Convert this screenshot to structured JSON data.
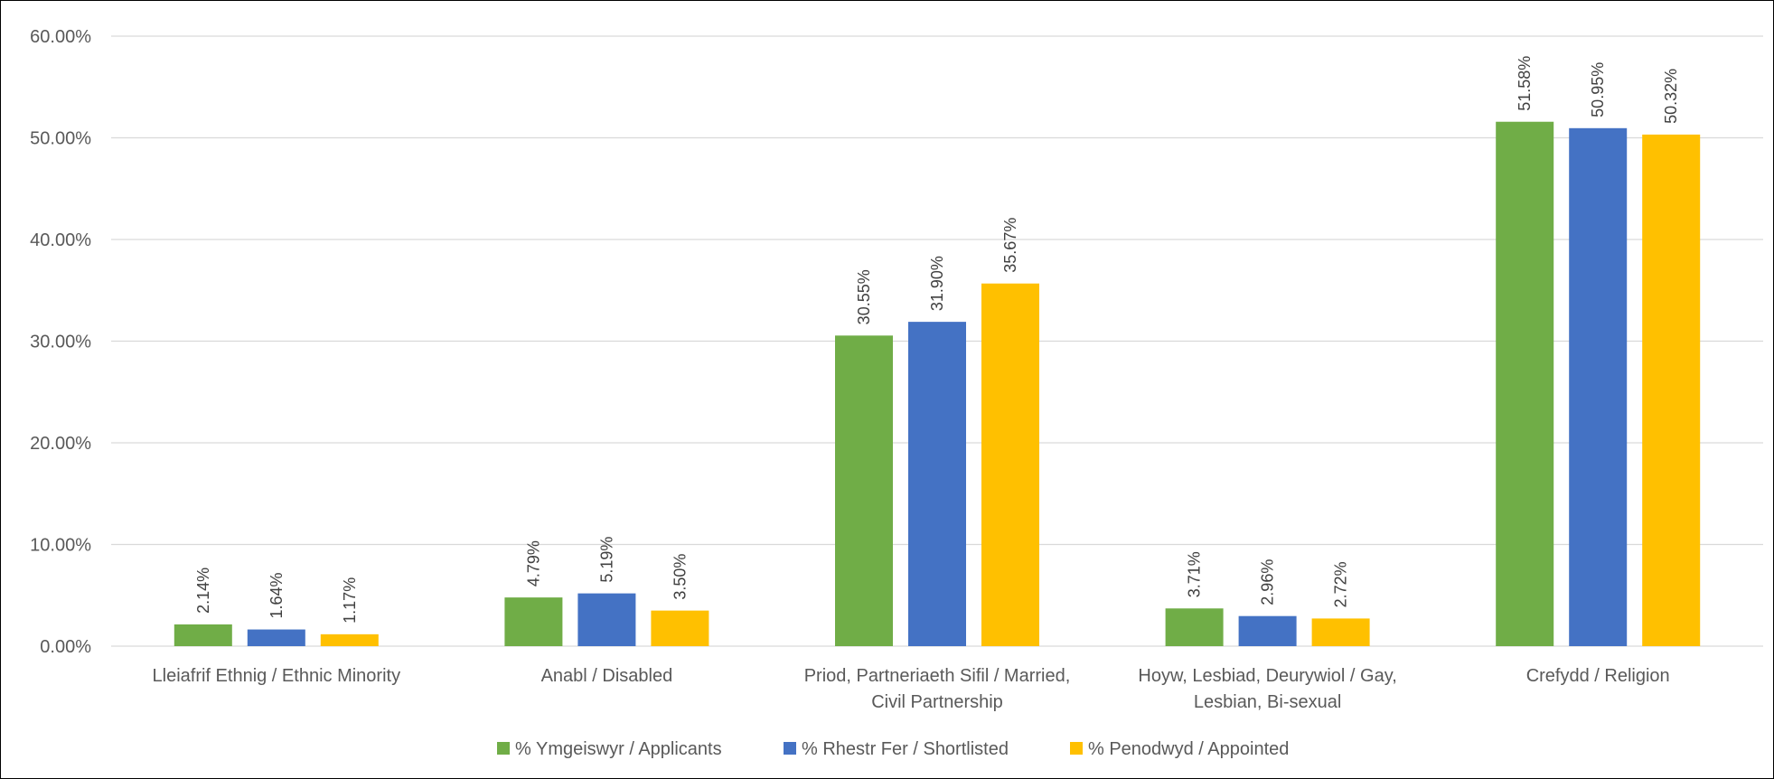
{
  "chart_data": {
    "type": "bar",
    "title": "",
    "xlabel": "",
    "ylabel": "",
    "ylim": [
      0,
      60
    ],
    "yticks": [
      0,
      10,
      20,
      30,
      40,
      50,
      60
    ],
    "ytick_labels": [
      "0.00%",
      "10.00%",
      "20.00%",
      "30.00%",
      "40.00%",
      "50.00%",
      "60.00%"
    ],
    "grid": true,
    "legend_position": "bottom",
    "categories": [
      [
        "Lleiafrif Ethnig / Ethnic Minority"
      ],
      [
        "Anabl / Disabled"
      ],
      [
        "Priod, Partneriaeth Sifil / Married,",
        "Civil Partnership"
      ],
      [
        "Hoyw, Lesbiad, Deurywiol / Gay,",
        "Lesbian, Bi-sexual"
      ],
      [
        "Crefydd / Religion"
      ]
    ],
    "series": [
      {
        "name": "% Ymgeiswyr / Applicants",
        "color": "#70ad47",
        "values": [
          2.14,
          4.79,
          30.55,
          3.71,
          51.58
        ],
        "labels": [
          "2.14%",
          "4.79%",
          "30.55%",
          "3.71%",
          "51.58%"
        ]
      },
      {
        "name": "% Rhestr Fer / Shortlisted",
        "color": "#4472c4",
        "values": [
          1.64,
          5.19,
          31.9,
          2.96,
          50.95
        ],
        "labels": [
          "1.64%",
          "5.19%",
          "31.90%",
          "2.96%",
          "50.95%"
        ]
      },
      {
        "name": "% Penodwyd / Appointed",
        "color": "#ffc000",
        "values": [
          1.17,
          3.5,
          35.67,
          2.72,
          50.32
        ],
        "labels": [
          "1.17%",
          "3.50%",
          "35.67%",
          "2.72%",
          "50.32%"
        ]
      }
    ]
  }
}
